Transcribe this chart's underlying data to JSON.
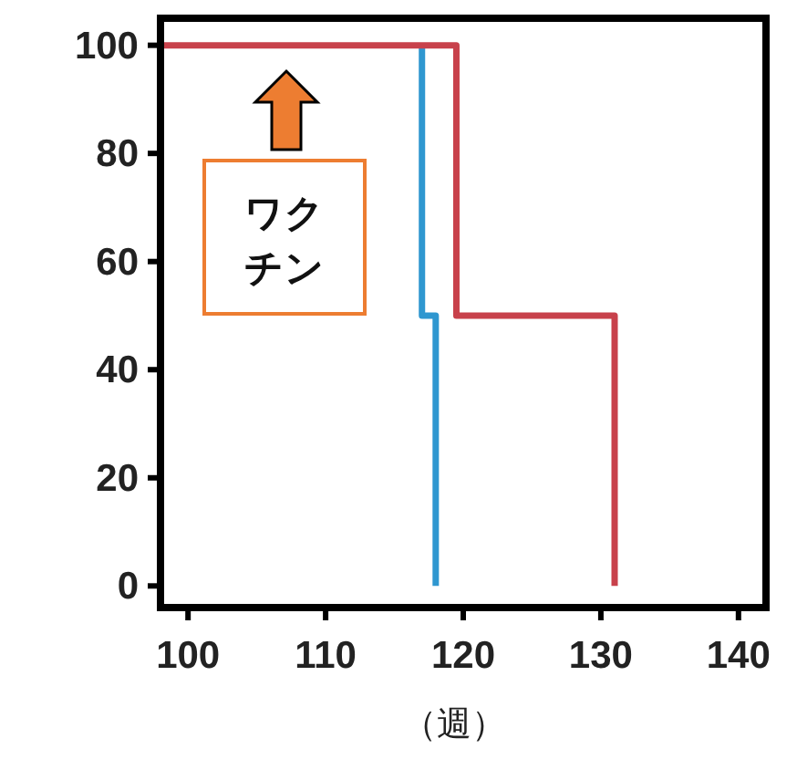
{
  "chart_data": {
    "type": "step",
    "xlabel": "（週）",
    "xlim": [
      98,
      142
    ],
    "ylim": [
      -4,
      105
    ],
    "xticks": [
      100,
      110,
      120,
      130,
      140
    ],
    "yticks": [
      0,
      20,
      40,
      60,
      80,
      100
    ],
    "series": [
      {
        "color": "#2f97d0",
        "x": [
          117,
          117,
          118
        ],
        "values": [
          100,
          50,
          0
        ]
      },
      {
        "color": "#c8414b",
        "x": [
          98,
          119.5,
          131
        ],
        "values": [
          100,
          50,
          0
        ]
      }
    ],
    "annotations": [
      "ワクチン"
    ]
  }
}
